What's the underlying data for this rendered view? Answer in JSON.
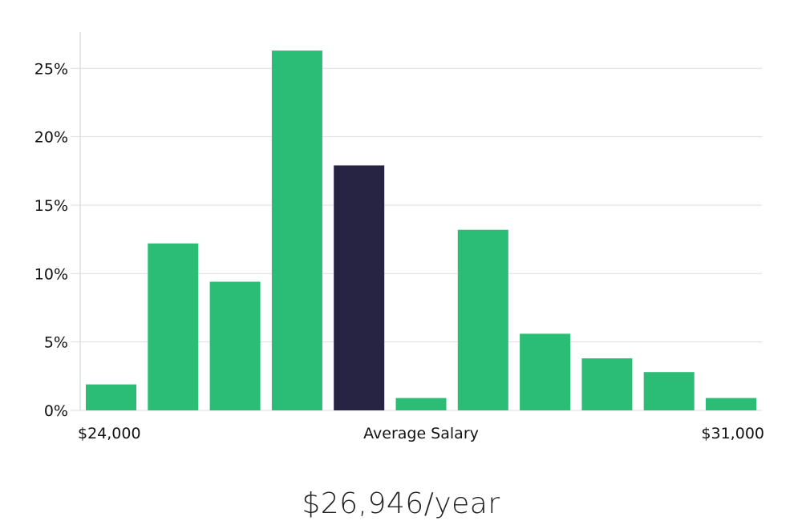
{
  "chart_data": {
    "type": "bar",
    "title": "",
    "xlabel": "Average Salary",
    "ylabel": "",
    "x_range_labels": {
      "min": "$24,000",
      "max": "$31,000"
    },
    "y_ticks": [
      "0%",
      "5%",
      "10%",
      "15%",
      "20%",
      "25%"
    ],
    "ylim": [
      0,
      27.5
    ],
    "grid": true,
    "values": [
      1.9,
      12.2,
      9.4,
      26.3,
      17.9,
      0.9,
      13.2,
      5.6,
      3.8,
      2.8,
      0.9
    ],
    "highlight_index": 4,
    "colors": {
      "bar": "#2bbd76",
      "highlight": "#272343",
      "grid": "#dddddd",
      "axis": "#cccccc"
    }
  },
  "summary": {
    "average_salary_label": "$26,946/year"
  }
}
